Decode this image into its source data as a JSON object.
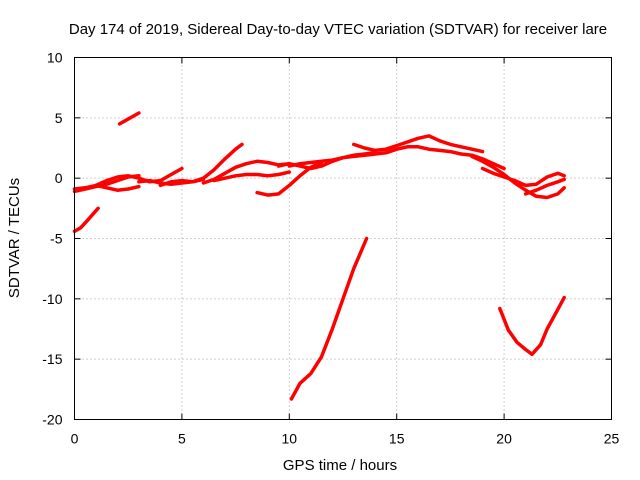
{
  "chart_data": {
    "type": "line",
    "title": "Day 174 of 2019, Sidereal Day-to-day VTEC variation (SDTVAR) for receiver lare",
    "xlabel": "GPS time / hours",
    "ylabel": "SDTVAR / TECUs",
    "xlim": [
      0,
      25
    ],
    "ylim": [
      -20,
      10
    ],
    "xticks": [
      0,
      5,
      10,
      15,
      20,
      25
    ],
    "yticks": [
      -20,
      -15,
      -10,
      -5,
      0,
      5,
      10
    ],
    "xtick_labels": [
      "0",
      "5",
      "10",
      "15",
      "20",
      "25"
    ],
    "ytick_labels": [
      "-20",
      "-15",
      "-10",
      "-5",
      "0",
      "5",
      "10"
    ],
    "grid": true,
    "legend": "none",
    "color": "#ff0000",
    "series": [
      {
        "name": "track-1",
        "x": [
          0.0,
          0.3,
          0.6,
          0.9,
          1.1
        ],
        "y": [
          -4.4,
          -4.1,
          -3.5,
          -2.9,
          -2.5
        ]
      },
      {
        "name": "track-2",
        "x": [
          2.1,
          2.4,
          2.7,
          3.0
        ],
        "y": [
          4.5,
          4.8,
          5.1,
          5.4
        ]
      },
      {
        "name": "track-3",
        "x": [
          0.0,
          0.5,
          1.0,
          1.5,
          2.0,
          2.5,
          3.0
        ],
        "y": [
          -1.1,
          -0.9,
          -0.7,
          -0.5,
          -0.2,
          0.1,
          0.2
        ]
      },
      {
        "name": "track-4",
        "x": [
          0.0,
          0.5,
          1.0,
          1.5,
          2.0,
          2.5,
          3.0,
          3.5,
          4.0,
          4.5,
          5.0
        ],
        "y": [
          -0.9,
          -0.8,
          -0.6,
          -0.2,
          0.1,
          0.2,
          0.0,
          -0.3,
          -0.2,
          0.3,
          0.8
        ]
      },
      {
        "name": "track-5",
        "x": [
          1.0,
          1.5,
          2.0,
          2.5,
          3.0
        ],
        "y": [
          -0.6,
          -0.8,
          -1.0,
          -0.9,
          -0.7
        ]
      },
      {
        "name": "track-6",
        "x": [
          3.0,
          3.5,
          4.0,
          4.5,
          5.0,
          5.5,
          6.0
        ],
        "y": [
          -0.3,
          -0.2,
          -0.4,
          -0.5,
          -0.4,
          -0.3,
          -0.1
        ]
      },
      {
        "name": "track-7",
        "x": [
          4.0,
          4.5,
          5.0,
          5.5,
          6.0,
          6.5,
          7.0,
          7.5,
          7.8
        ],
        "y": [
          -0.6,
          -0.3,
          -0.2,
          -0.3,
          0.0,
          0.7,
          1.6,
          2.4,
          2.8
        ]
      },
      {
        "name": "track-8",
        "x": [
          6.0,
          6.5,
          7.0,
          7.5,
          8.0,
          8.5,
          9.0,
          9.5,
          10.0
        ],
        "y": [
          -0.4,
          -0.1,
          0.4,
          0.9,
          1.2,
          1.4,
          1.3,
          1.1,
          1.2
        ]
      },
      {
        "name": "track-9",
        "x": [
          6.5,
          7.0,
          7.5,
          8.0,
          8.5,
          9.0,
          9.5,
          10.0
        ],
        "y": [
          -0.2,
          0.0,
          0.2,
          0.3,
          0.3,
          0.2,
          0.3,
          0.5
        ]
      },
      {
        "name": "track-10",
        "x": [
          8.5,
          9.0,
          9.5,
          10.0,
          10.5,
          11.0,
          11.5
        ],
        "y": [
          -1.2,
          -1.4,
          -1.3,
          -0.6,
          0.2,
          0.9,
          1.3
        ]
      },
      {
        "name": "track-11",
        "x": [
          9.5,
          10.0,
          10.5,
          11.0,
          11.5,
          12.0,
          12.5,
          13.0,
          13.5,
          14.0
        ],
        "y": [
          1.0,
          1.2,
          1.0,
          0.8,
          1.0,
          1.4,
          1.7,
          1.9,
          2.0,
          2.1
        ]
      },
      {
        "name": "track-12",
        "x": [
          10.0,
          10.5,
          11.0,
          11.5,
          12.0,
          12.5,
          13.0,
          13.5,
          14.0,
          14.5,
          15.0,
          15.5,
          16.0,
          16.5,
          17.0,
          17.5,
          18.0,
          18.5,
          19.0,
          19.5,
          20.0
        ],
        "y": [
          1.0,
          1.2,
          1.3,
          1.4,
          1.5,
          1.7,
          1.8,
          1.9,
          2.0,
          2.1,
          2.4,
          2.6,
          2.6,
          2.4,
          2.3,
          2.2,
          2.0,
          1.9,
          1.6,
          1.2,
          0.8
        ]
      },
      {
        "name": "track-13",
        "x": [
          13.0,
          13.5,
          14.0,
          14.5,
          15.0,
          15.5,
          16.0,
          16.5,
          17.0,
          17.5,
          18.0,
          18.5,
          19.0
        ],
        "y": [
          2.8,
          2.5,
          2.3,
          2.4,
          2.7,
          3.0,
          3.3,
          3.5,
          3.1,
          2.8,
          2.6,
          2.4,
          2.2
        ]
      },
      {
        "name": "track-14",
        "x": [
          18.5,
          19.0,
          19.5,
          20.0,
          20.5,
          21.0,
          21.5,
          22.0,
          22.5,
          22.8
        ],
        "y": [
          1.8,
          1.4,
          0.9,
          0.3,
          -0.4,
          -1.0,
          -1.5,
          -1.6,
          -1.3,
          -0.8
        ]
      },
      {
        "name": "track-15",
        "x": [
          19.0,
          19.5,
          20.0,
          20.5,
          21.0,
          21.5,
          22.0,
          22.5,
          22.8
        ],
        "y": [
          0.8,
          0.4,
          0.1,
          -0.2,
          -0.6,
          -0.5,
          0.1,
          0.4,
          0.2
        ]
      },
      {
        "name": "track-16",
        "x": [
          21.0,
          21.5,
          22.0,
          22.5,
          22.8
        ],
        "y": [
          -1.3,
          -1.0,
          -0.6,
          -0.3,
          -0.1
        ]
      },
      {
        "name": "track-17",
        "x": [
          10.1,
          10.5,
          11.0,
          11.5,
          12.0,
          12.5,
          13.0,
          13.6
        ],
        "y": [
          -18.3,
          -17.0,
          -16.2,
          -14.8,
          -12.5,
          -10.0,
          -7.5,
          -5.0
        ]
      },
      {
        "name": "track-18",
        "x": [
          19.8,
          20.2,
          20.6,
          21.0,
          21.3,
          21.7,
          22.0,
          22.4,
          22.8
        ],
        "y": [
          -10.8,
          -12.6,
          -13.6,
          -14.2,
          -14.6,
          -13.8,
          -12.5,
          -11.2,
          -9.9
        ]
      }
    ]
  }
}
